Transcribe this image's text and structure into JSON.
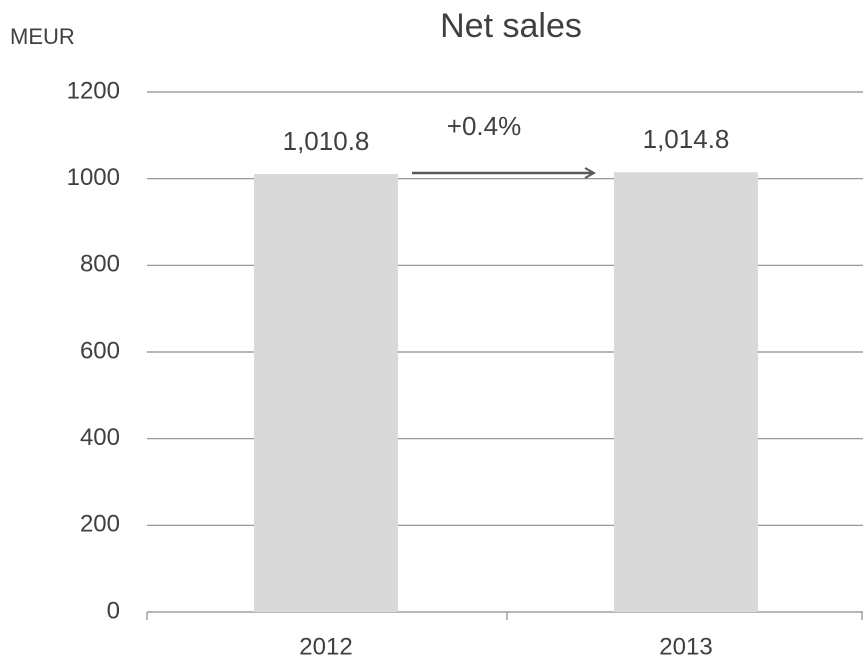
{
  "chart_data": {
    "type": "bar",
    "title": "Net sales",
    "y_label": "MEUR",
    "categories": [
      "2012",
      "2013"
    ],
    "values": [
      1010.8,
      1014.8
    ],
    "value_labels": [
      "1,010.8",
      "1,014.8"
    ],
    "annotation": "+0.4%",
    "color": "#d9d9d9",
    "ylim": [
      0,
      1200
    ],
    "yticks": [
      0,
      200,
      400,
      600,
      800,
      1000,
      1200
    ],
    "grid": true
  }
}
